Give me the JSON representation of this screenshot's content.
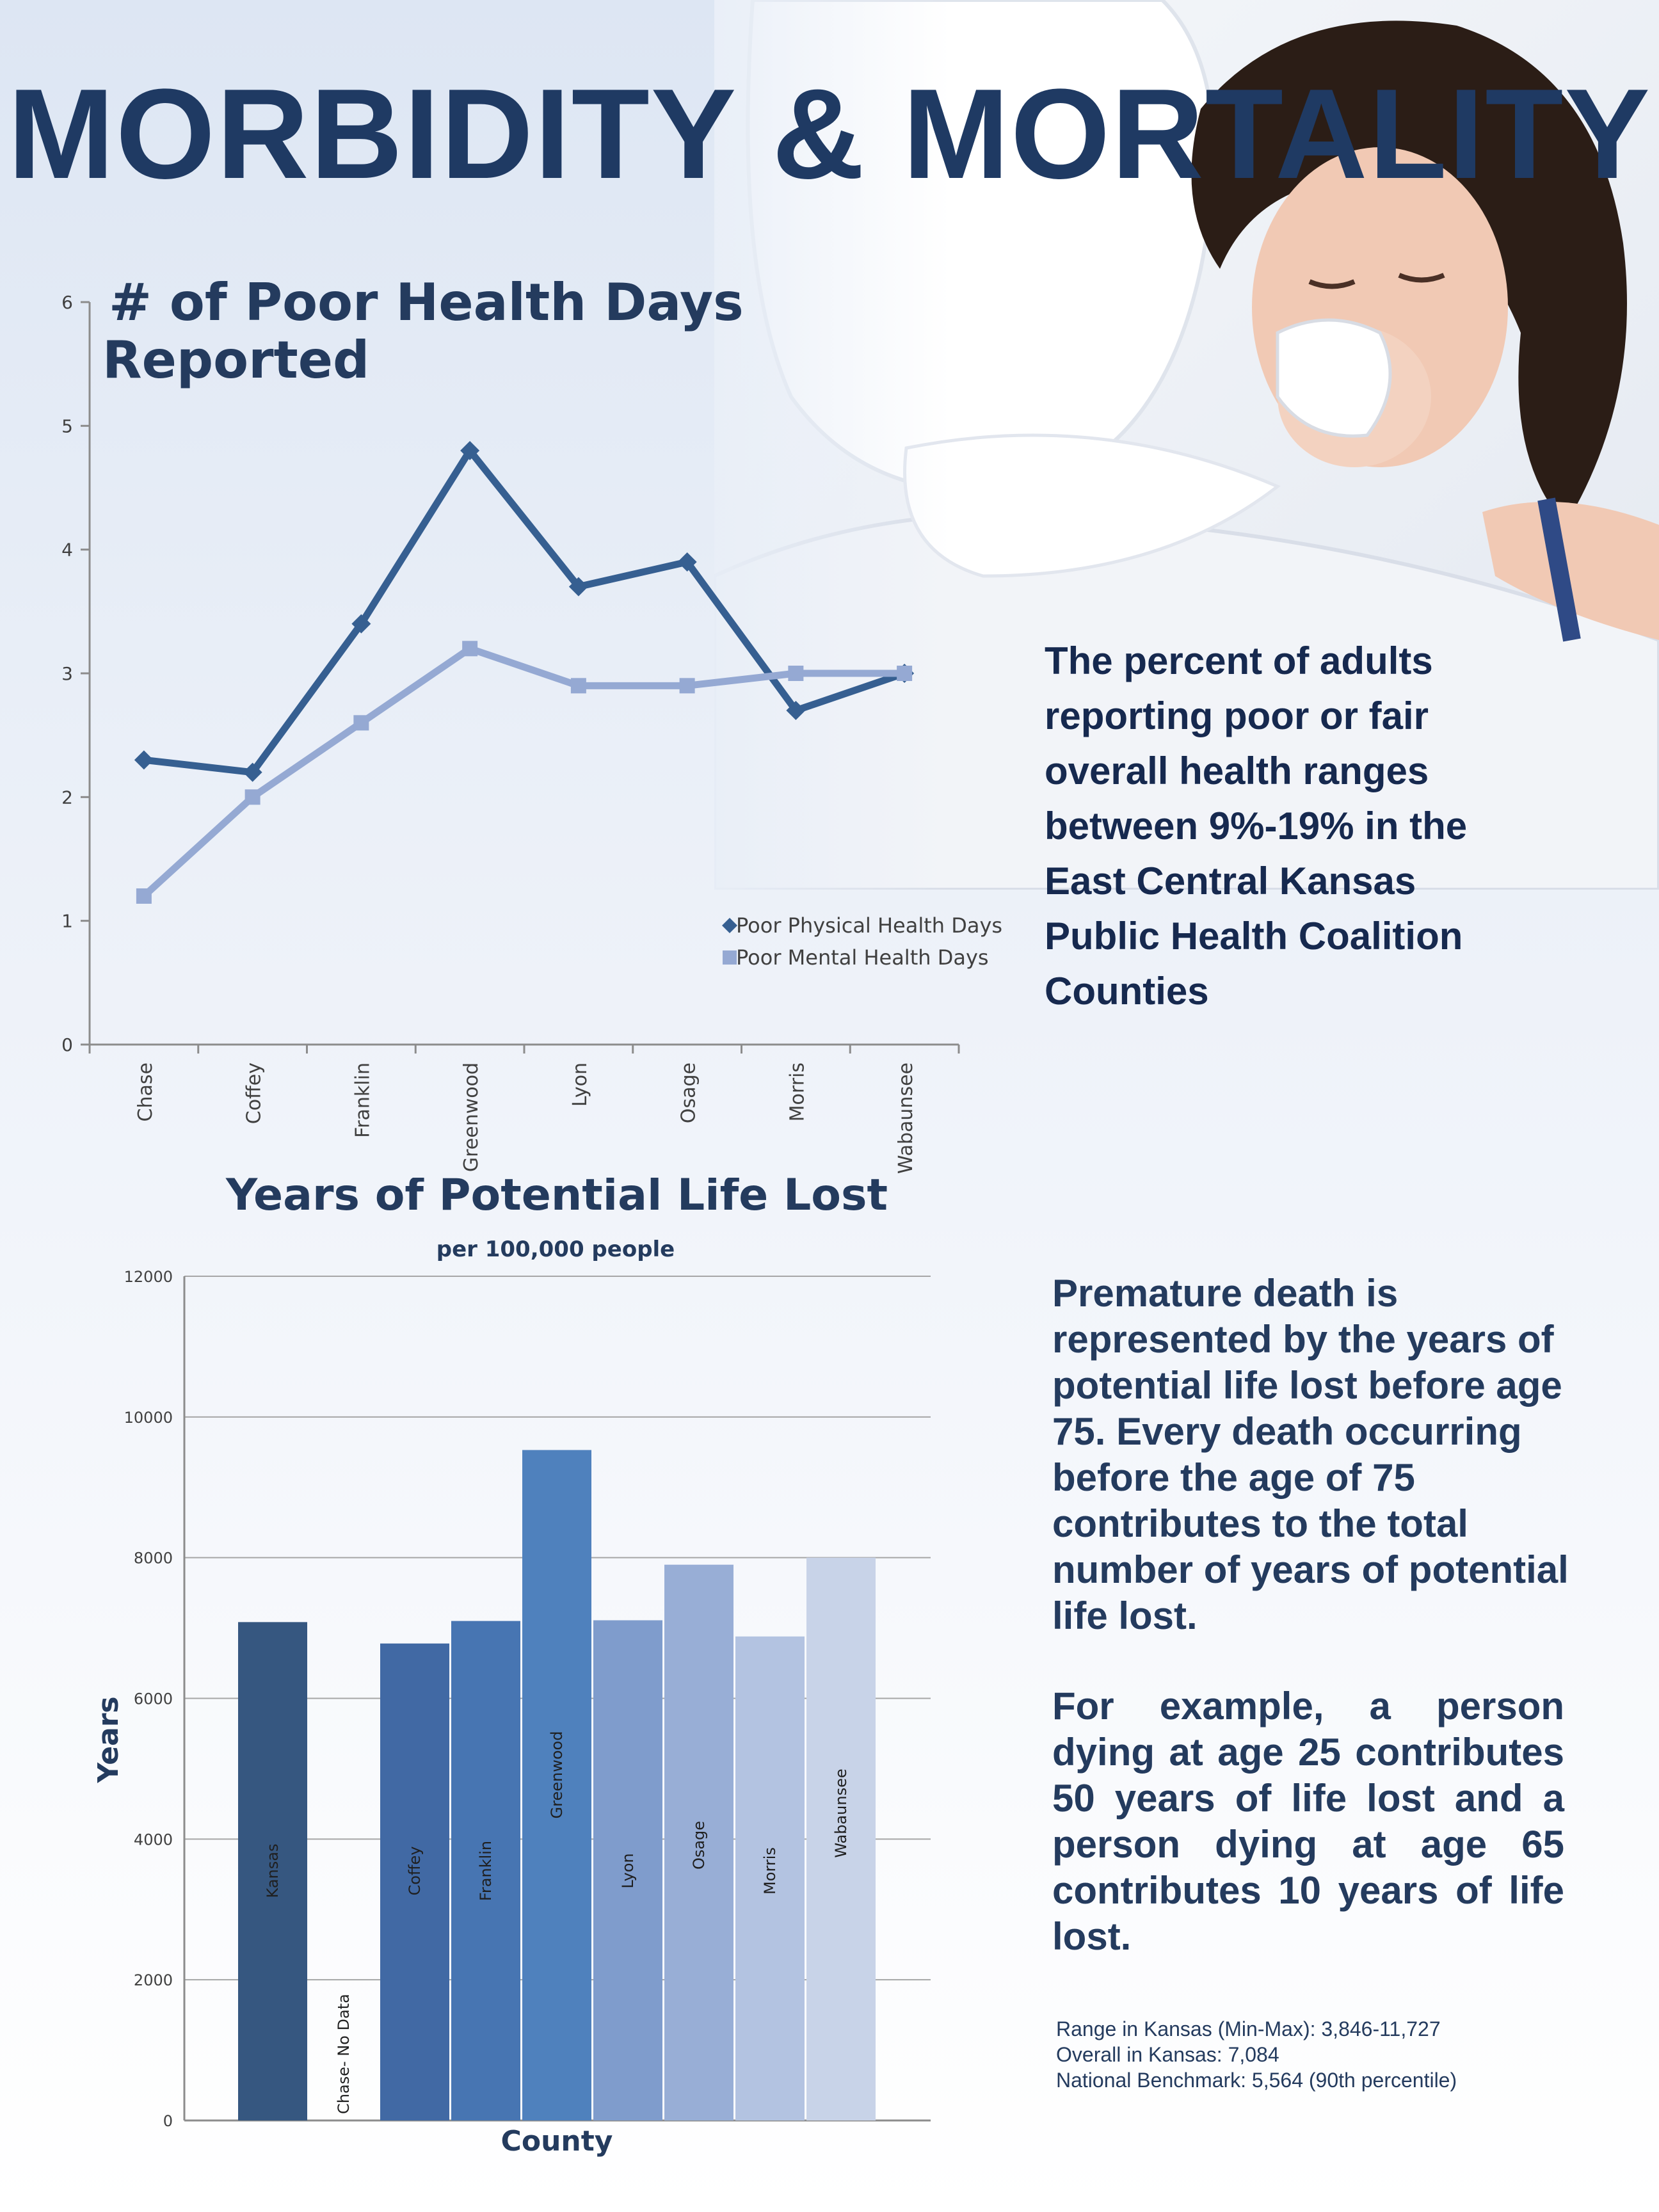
{
  "page": {
    "title": "MORBIDITY & MORTALITY",
    "coalition_text": "The percent of adults reporting poor or fair overall health ranges between 9%-19% in the East Central Kansas Public Health Coalition Counties",
    "premature_text": "Premature death is represented by  the years of potential life lost before  age 75. Every death occurring before  the age of 75 contributes to the total number of years of potential life lost.",
    "example_text": "For example, a person dying at age 25 contributes 50 years of life lost  and a person dying at age 65 contributes 10 years of life lost.",
    "stats": {
      "range": "Range in Kansas (Min-Max): 3,846-11,727",
      "overall": "Overall in Kansas: 7,084",
      "benchmark": "National Benchmark: 5,564 (90th percentile)"
    }
  },
  "colors": {
    "title": "#1f3a63",
    "physical": "#365f91",
    "mental": "#95a9d3"
  },
  "chart_data": [
    {
      "type": "line",
      "title": " # of Poor Health Days Reported",
      "title_lines": [
        " # of Poor Health Days",
        "Reported"
      ],
      "categories": [
        "Chase",
        "Coffey",
        "Franklin",
        "Greenwood",
        "Lyon",
        "Osage",
        "Morris",
        "Wabaunsee"
      ],
      "series": [
        {
          "name": "Poor Physical Health Days",
          "values": [
            2.3,
            2.2,
            3.4,
            4.8,
            3.7,
            3.9,
            2.7,
            3.0
          ],
          "color": "#365f91",
          "marker": "diamond"
        },
        {
          "name": "Poor Mental Health Days",
          "values": [
            1.2,
            2.0,
            2.6,
            3.2,
            2.9,
            2.9,
            3.0,
            3.0
          ],
          "color": "#95a9d3",
          "marker": "square"
        }
      ],
      "ylim": [
        0,
        6
      ],
      "yticks": [
        0,
        1,
        2,
        3,
        4,
        5,
        6
      ],
      "legend": "bottom-right",
      "grid": false
    },
    {
      "type": "bar",
      "title": "Years of Potential Life Lost",
      "subtitle": "per 100,000 people",
      "xlabel": "County",
      "ylabel": "Years",
      "categories": [
        "Kansas",
        "Chase- No Data",
        "Coffey",
        "Franklin",
        "Greenwood",
        "Lyon",
        "Osage",
        "Morris",
        "Wabaunsee"
      ],
      "values": [
        7084,
        null,
        6780,
        7100,
        9530,
        7110,
        7900,
        6880,
        8000
      ],
      "colors": [
        "#365780",
        "#ffffff",
        "#4169a4",
        "#4775b2",
        "#4f81bd",
        "#7f9ccc",
        "#98aed6",
        "#b3c3e1",
        "#c8d3e8"
      ],
      "ylim": [
        0,
        12000
      ],
      "yticks": [
        0,
        2000,
        4000,
        6000,
        8000,
        10000,
        12000
      ],
      "grid": true
    }
  ]
}
